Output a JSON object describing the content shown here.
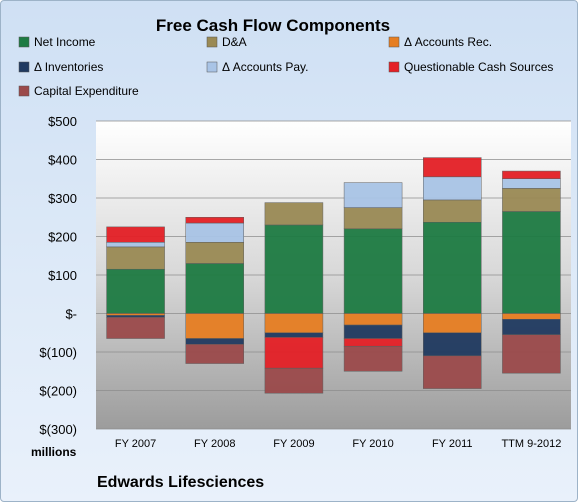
{
  "chart_data": {
    "type": "bar",
    "stacked": true,
    "title": "Free Cash Flow Components",
    "company": "Edwards Lifesciences",
    "unit_label": "millions",
    "categories": [
      "FY 2007",
      "FY 2008",
      "FY 2009",
      "FY 2010",
      "FY 2011",
      "TTM 9-2012"
    ],
    "ylim": [
      -300,
      500
    ],
    "yticks": [
      500,
      400,
      300,
      200,
      100,
      0,
      -100,
      -200,
      -300
    ],
    "ytick_labels": [
      "$500",
      "$400",
      "$300",
      "$200",
      "$100",
      "$-",
      "$(100)",
      "$(200)",
      "$(300)"
    ],
    "grid": true,
    "legend_position": "top",
    "series": [
      {
        "name": "Net Income",
        "color": "#1e7b43",
        "values": [
          115,
          130,
          230,
          220,
          237,
          265
        ]
      },
      {
        "name": "D&A",
        "color": "#9a8a55",
        "values": [
          58,
          55,
          58,
          55,
          58,
          60
        ]
      },
      {
        "name": "Δ Accounts Rec.",
        "color": "#e67e22",
        "values": [
          -5,
          -65,
          -50,
          -30,
          -50,
          -15
        ]
      },
      {
        "name": "Δ Inventories",
        "color": "#203a60",
        "values": [
          -5,
          -15,
          -12,
          -35,
          -60,
          -40
        ]
      },
      {
        "name": "Δ Accounts Pay.",
        "color": "#a9c4e6",
        "values": [
          12,
          50,
          0,
          65,
          60,
          25
        ]
      },
      {
        "name": "Questionable Cash Sources",
        "color": "#e42026",
        "values": [
          40,
          15,
          -80,
          -20,
          50,
          20
        ]
      },
      {
        "name": "Capital Expenditure",
        "color": "#9b4a4b",
        "values": [
          -55,
          -50,
          -65,
          -65,
          -85,
          -100
        ]
      }
    ]
  }
}
